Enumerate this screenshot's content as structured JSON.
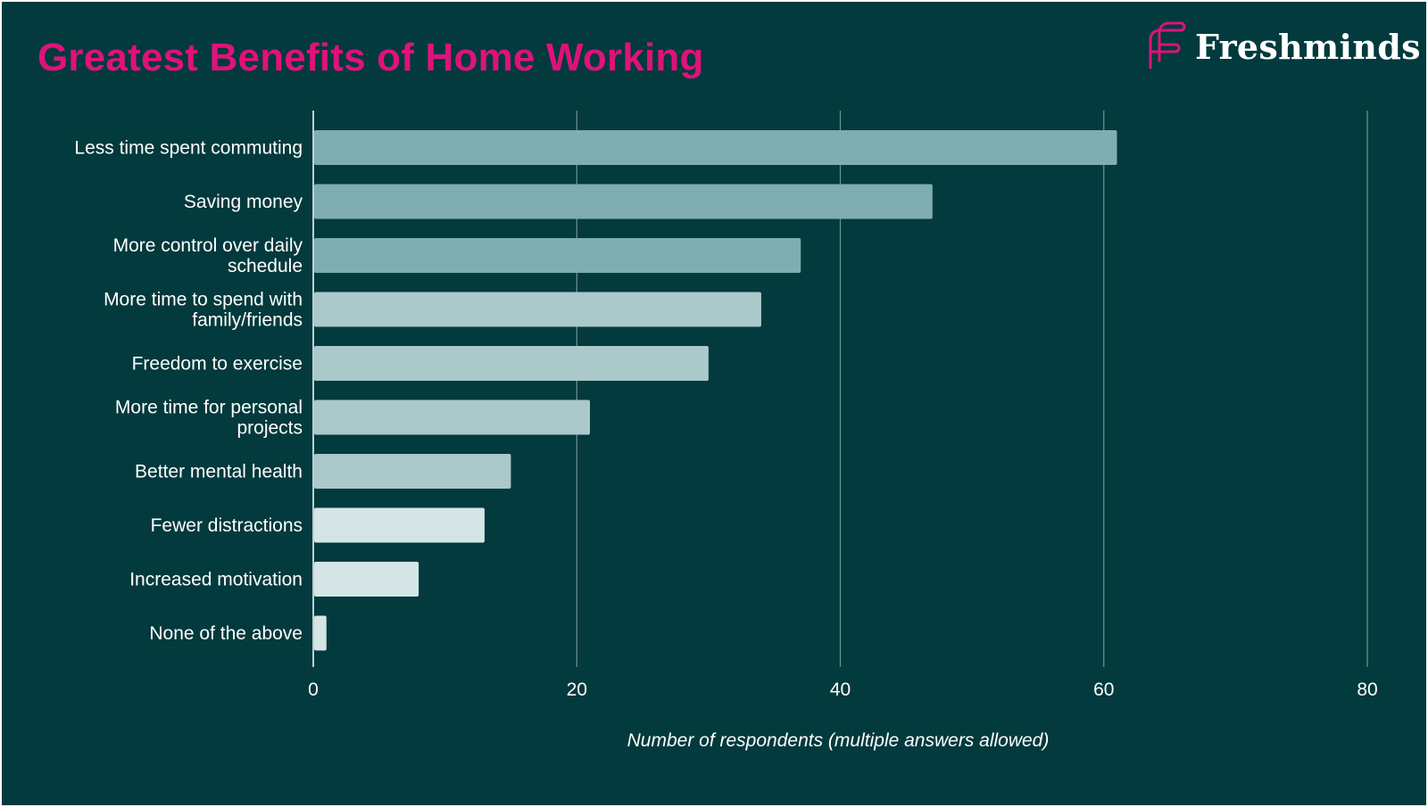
{
  "brand": {
    "name": "Freshminds",
    "colors": {
      "background": "#023A3D",
      "title": "#E0127A",
      "logo_mark": "#E0127A",
      "text": "#FFFFFF",
      "grid": "#6E9496"
    }
  },
  "chart_data": {
    "type": "bar",
    "orientation": "horizontal",
    "title": "Greatest Benefits of Home Working",
    "xlabel": "Number of respondents (multiple answers allowed)",
    "ylabel": "",
    "xlim": [
      0,
      80
    ],
    "xticks": [
      0,
      20,
      40,
      60,
      80
    ],
    "grid": true,
    "legend": "none",
    "categories": [
      "Less time spent commuting",
      "Saving money",
      "More control over daily schedule",
      "More time to spend with family/friends",
      "Freedom to exercise",
      "More time for personal projects",
      "Better mental health",
      "Fewer distractions",
      "Increased motivation",
      "None of the above"
    ],
    "category_label_lines": [
      [
        "Less time spent commuting"
      ],
      [
        "Saving money"
      ],
      [
        "More control over daily",
        "schedule"
      ],
      [
        "More time to spend with",
        "family/friends"
      ],
      [
        "Freedom to exercise"
      ],
      [
        "More time for personal",
        "projects"
      ],
      [
        "Better mental health"
      ],
      [
        "Fewer distractions"
      ],
      [
        "Increased motivation"
      ],
      [
        "None of the above"
      ]
    ],
    "values": [
      61,
      47,
      37,
      34,
      30,
      21,
      15,
      13,
      8,
      1
    ],
    "bar_colors": [
      "#7FADB0",
      "#7FADB0",
      "#7FADB0",
      "#ABC8CB",
      "#ABC8CB",
      "#ABC8CB",
      "#ABC8CB",
      "#D5E5E6",
      "#D5E5E6",
      "#D5E5E6"
    ]
  }
}
